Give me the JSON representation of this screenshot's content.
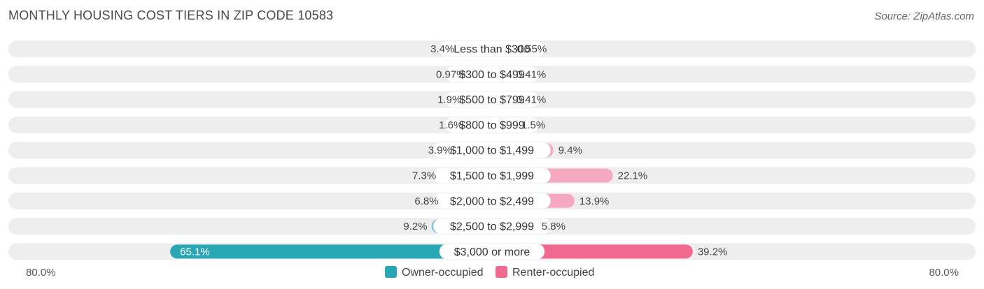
{
  "header": {
    "title": "MONTHLY HOUSING COST TIERS IN ZIP CODE 10583",
    "source": "Source: ZipAtlas.com"
  },
  "colors": {
    "owner": "#7dc9d2",
    "owner_strong": "#2aa7b5",
    "renter": "#f7a8c1",
    "renter_strong": "#f0698f",
    "row_bg": "#eeeeee"
  },
  "chart_data": {
    "type": "bar",
    "orientation": "horizontal-diverging",
    "categories": [
      "Less than $300",
      "$300 to $499",
      "$500 to $799",
      "$800 to $999",
      "$1,000 to $1,499",
      "$1,500 to $1,999",
      "$2,000 to $2,499",
      "$2,500 to $2,999",
      "$3,000 or more"
    ],
    "series": [
      {
        "name": "Owner-occupied",
        "values": [
          3.4,
          0.97,
          1.9,
          1.6,
          3.9,
          7.3,
          6.8,
          9.2,
          65.1
        ],
        "labels": [
          "3.4%",
          "0.97%",
          "1.9%",
          "1.6%",
          "3.9%",
          "7.3%",
          "6.8%",
          "9.2%",
          "65.1%"
        ]
      },
      {
        "name": "Renter-occupied",
        "values": [
          0.55,
          0.41,
          0.41,
          1.5,
          9.4,
          22.1,
          13.9,
          5.8,
          39.2
        ],
        "labels": [
          "0.55%",
          "0.41%",
          "0.41%",
          "1.5%",
          "9.4%",
          "22.1%",
          "13.9%",
          "5.8%",
          "39.2%"
        ]
      }
    ],
    "xlim": [
      -80,
      80
    ],
    "axis_labels": {
      "left": "80.0%",
      "right": "80.0%"
    },
    "legend": {
      "position": "bottom-center",
      "entries": [
        "Owner-occupied",
        "Renter-occupied"
      ]
    }
  }
}
